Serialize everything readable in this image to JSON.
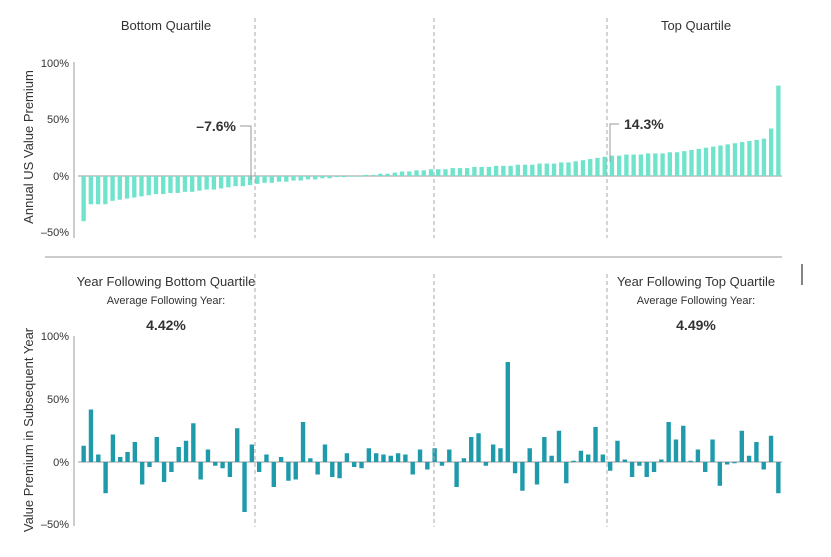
{
  "chart_data": [
    {
      "type": "bar",
      "ylabel": "Annual US Value Premium",
      "yticks": [
        "100%",
        "50%",
        "0%",
        "–50%"
      ],
      "ylim": [
        -50,
        100
      ],
      "grid": false,
      "quartile_labels": {
        "bottom": "Bottom Quartile",
        "top": "Top Quartile"
      },
      "annotations": {
        "bottom_avg": "–7.6%",
        "top_avg": "14.3%"
      },
      "color": "#6fe3cc",
      "values": [
        -40,
        -25,
        -25,
        -25,
        -22,
        -21,
        -20,
        -19,
        -18,
        -17,
        -16,
        -16,
        -15,
        -15,
        -14,
        -14,
        -13,
        -12,
        -12,
        -11,
        -10,
        -9,
        -9,
        -8,
        -7,
        -6,
        -6,
        -5,
        -5,
        -4,
        -4,
        -3,
        -3,
        -2,
        -2,
        -1,
        -1,
        0,
        0,
        1,
        1,
        2,
        2,
        3,
        4,
        4,
        5,
        5,
        6,
        6,
        6,
        7,
        7,
        7,
        8,
        8,
        8,
        9,
        9,
        9,
        10,
        10,
        10,
        11,
        11,
        11,
        12,
        12,
        13,
        14,
        15,
        16,
        17,
        18,
        18,
        19,
        19,
        19,
        20,
        20,
        20,
        21,
        21,
        22,
        23,
        24,
        25,
        26,
        27,
        28,
        29,
        30,
        31,
        32,
        33,
        42,
        80
      ]
    },
    {
      "type": "bar",
      "ylabel": "Value Premium in Subsequent Year",
      "yticks": [
        "100%",
        "50%",
        "0%",
        "–50%"
      ],
      "ylim": [
        -50,
        100
      ],
      "grid": false,
      "quartile_labels": {
        "bottom": "Year Following Bottom Quartile",
        "top": "Year Following Top Quartile"
      },
      "avg_caption": "Average Following Year:",
      "annotations": {
        "bottom_avg": "4.42%",
        "top_avg": "4.49%"
      },
      "color": "#1f9aaa",
      "values": [
        13,
        42,
        6,
        -25,
        22,
        4,
        8,
        16,
        -18,
        -4,
        20,
        -16,
        -8,
        12,
        17,
        31,
        -14,
        10,
        -3,
        -5,
        -12,
        27,
        -40,
        14,
        -8,
        6,
        -20,
        4,
        -15,
        -14,
        32,
        3,
        -10,
        14,
        -12,
        -13,
        7,
        -4,
        -5,
        11,
        7,
        6,
        5,
        7,
        6,
        -10,
        10,
        -6,
        11,
        -3,
        10,
        -20,
        3,
        20,
        23,
        -3,
        14,
        11,
        80,
        -9,
        -23,
        11,
        -18,
        20,
        5,
        25,
        -17,
        1,
        9,
        6,
        28,
        6,
        -7,
        17,
        2,
        -12,
        -3,
        -12,
        -8,
        2,
        32,
        18,
        29,
        1,
        10,
        -8,
        18,
        -19,
        -2,
        -1,
        25,
        5,
        16,
        -6,
        21,
        -25
      ]
    }
  ]
}
